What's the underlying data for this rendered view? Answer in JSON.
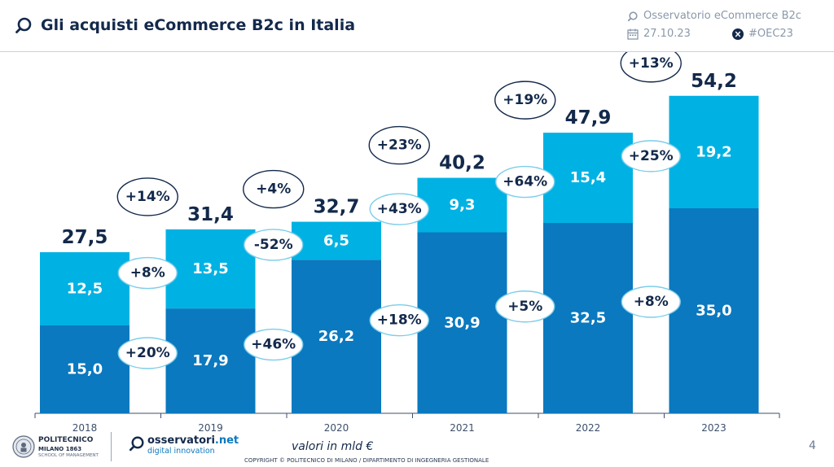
{
  "header": {
    "title": "Gli acquisti eCommerce B2c in Italia",
    "observatory": "Osservatorio eCommerce B2c",
    "date": "27.10.23",
    "hashtag": "#OEC23"
  },
  "footer": {
    "unit_note": "valori in mld €",
    "copyright": "COPYRIGHT © POLITECNICO DI MILANO / DIPARTIMENTO DI INGEGNERIA GESTIONALE",
    "page_number": "4",
    "polimi": {
      "line1": "POLITECNICO",
      "line2": "MILANO 1863",
      "line3": "SCHOOL OF MANAGEMENT"
    },
    "osservatori": {
      "brand": "osservatori",
      "brand_suffix": ".net",
      "tagline": "digital innovation"
    }
  },
  "colors": {
    "bottom_series": "#0a79bf",
    "top_series": "#00b2e3",
    "title_navy": "#13294b",
    "ellipse_dark": "#13294b",
    "ellipse_light": "#7ccdea"
  },
  "chart_data": {
    "type": "bar",
    "stacked": true,
    "title": "Gli acquisti eCommerce B2c in Italia",
    "unit": "valori in mld €",
    "categories": [
      "2018",
      "2019",
      "2020",
      "2021",
      "2022",
      "2023"
    ],
    "series": [
      {
        "name": "bottom",
        "values": [
          "15,0",
          "17,9",
          "26,2",
          "30,9",
          "32,5",
          "35,0"
        ]
      },
      {
        "name": "top",
        "values": [
          "12,5",
          "13,5",
          "6,5",
          "9,3",
          "15,4",
          "19,2"
        ]
      }
    ],
    "totals": [
      "27,5",
      "31,4",
      "32,7",
      "40,2",
      "47,9",
      "54,2"
    ],
    "total_growth": [
      "+14%",
      "+4%",
      "+23%",
      "+19%",
      "+13%"
    ],
    "top_growth": [
      "+8%",
      "-52%",
      "+43%",
      "+64%",
      "+25%"
    ],
    "bottom_growth": [
      "+20%",
      "+46%",
      "+18%",
      "+5%",
      "+8%"
    ]
  }
}
